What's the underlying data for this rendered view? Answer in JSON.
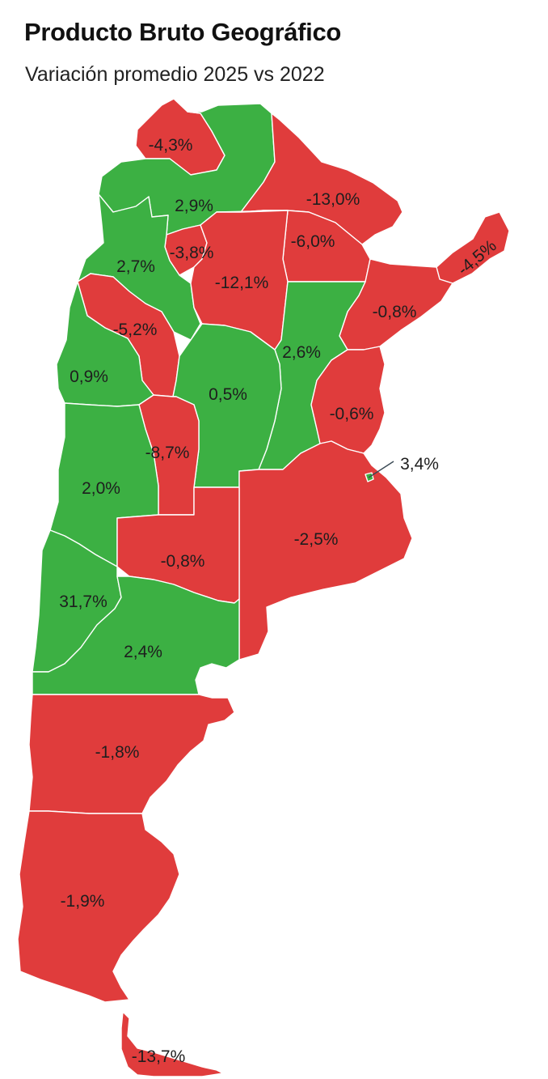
{
  "header": {
    "title": "Producto Bruto Geográfico",
    "subtitle": "Variación promedio 2025 vs 2022"
  },
  "colors": {
    "positive": "#3cb043",
    "negative": "#e03c3c",
    "border": "#ffffff"
  },
  "provinces": [
    {
      "id": "jujuy",
      "label": "-4,3%",
      "value": -4.3
    },
    {
      "id": "salta",
      "label": "2,9%",
      "value": 2.9
    },
    {
      "id": "formosa",
      "label": "-13,0%",
      "value": -13.0
    },
    {
      "id": "chaco",
      "label": "-6,0%",
      "value": -6.0
    },
    {
      "id": "misiones",
      "label": "-4,5%",
      "value": -4.5
    },
    {
      "id": "tucuman",
      "label": "-3,8%",
      "value": -3.8
    },
    {
      "id": "catamarca",
      "label": "2,7%",
      "value": 2.7
    },
    {
      "id": "santiago-del-estero",
      "label": "-12,1%",
      "value": -12.1
    },
    {
      "id": "corrientes",
      "label": "-0,8%",
      "value": -0.8
    },
    {
      "id": "la-rioja",
      "label": "-5,2%",
      "value": -5.2
    },
    {
      "id": "santa-fe",
      "label": "2,6%",
      "value": 2.6
    },
    {
      "id": "san-juan",
      "label": "0,9%",
      "value": 0.9
    },
    {
      "id": "cordoba",
      "label": "0,5%",
      "value": 0.5
    },
    {
      "id": "entre-rios",
      "label": "-0,6%",
      "value": -0.6
    },
    {
      "id": "san-luis",
      "label": "-8,7%",
      "value": -8.7
    },
    {
      "id": "caba",
      "label": "3,4%",
      "value": 3.4
    },
    {
      "id": "mendoza",
      "label": "2,0%",
      "value": 2.0
    },
    {
      "id": "buenos-aires",
      "label": "-2,5%",
      "value": -2.5
    },
    {
      "id": "la-pampa",
      "label": "-0,8%",
      "value": -0.8
    },
    {
      "id": "neuquen",
      "label": "31,7%",
      "value": 31.7
    },
    {
      "id": "rio-negro",
      "label": "2,4%",
      "value": 2.4
    },
    {
      "id": "chubut",
      "label": "-1,8%",
      "value": -1.8
    },
    {
      "id": "santa-cruz",
      "label": "-1,9%",
      "value": -1.9
    },
    {
      "id": "tierra-del-fuego",
      "label": "-13,7%",
      "value": -13.7
    }
  ]
}
